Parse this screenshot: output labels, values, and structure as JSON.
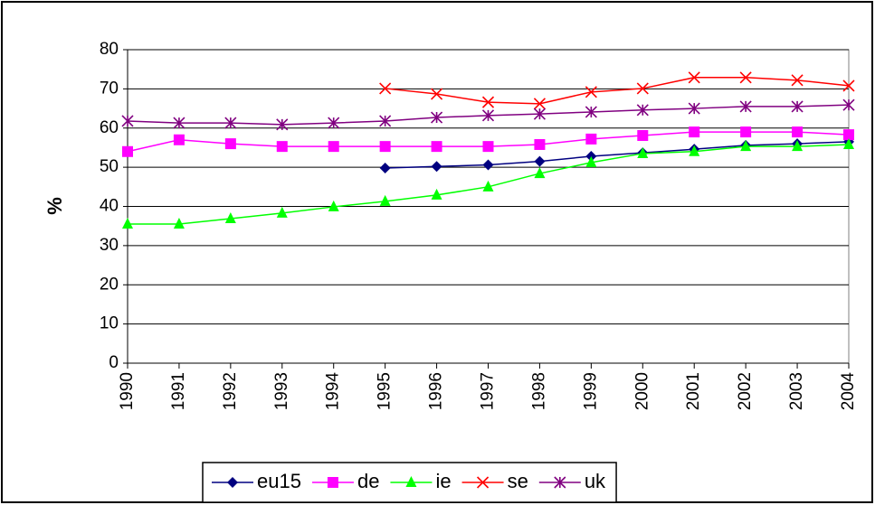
{
  "chart_data": {
    "type": "line",
    "y_label": "%",
    "categories": [
      "1990",
      "1991",
      "1992",
      "1993",
      "1994",
      "1995",
      "1996",
      "1997",
      "1998",
      "1999",
      "2000",
      "2001",
      "2002",
      "2003",
      "2004"
    ],
    "series": [
      {
        "name": "eu15",
        "color": "#000080",
        "marker": "diamond",
        "values": [
          null,
          null,
          null,
          null,
          null,
          49.8,
          50.2,
          50.6,
          51.5,
          52.8,
          53.7,
          54.6,
          55.6,
          56.0,
          56.5
        ]
      },
      {
        "name": "de",
        "color": "#ff00ff",
        "marker": "square",
        "values": [
          54.0,
          57.0,
          56.0,
          55.3,
          55.3,
          55.3,
          55.3,
          55.3,
          55.8,
          57.2,
          58.1,
          59.0,
          59.0,
          59.0,
          58.3
        ]
      },
      {
        "name": "ie",
        "color": "#00ff00",
        "marker": "triangle",
        "values": [
          35.5,
          35.5,
          36.9,
          38.3,
          39.9,
          41.3,
          42.9,
          45.0,
          48.4,
          51.2,
          53.5,
          54.0,
          55.3,
          55.3,
          55.8
        ]
      },
      {
        "name": "se",
        "color": "#ff0000",
        "marker": "x",
        "values": [
          null,
          null,
          null,
          null,
          null,
          70.1,
          68.7,
          66.6,
          66.2,
          69.2,
          70.1,
          72.9,
          72.9,
          72.2,
          70.8
        ]
      },
      {
        "name": "uk",
        "color": "#800080",
        "marker": "star",
        "values": [
          61.8,
          61.3,
          61.3,
          60.9,
          61.3,
          61.8,
          62.7,
          63.2,
          63.6,
          64.1,
          64.6,
          65.0,
          65.5,
          65.5,
          65.9
        ]
      }
    ],
    "ylim": [
      0,
      80
    ],
    "yticks": [
      0,
      10,
      20,
      30,
      40,
      50,
      60,
      70,
      80
    ],
    "grid": true,
    "legend": "bottom"
  }
}
